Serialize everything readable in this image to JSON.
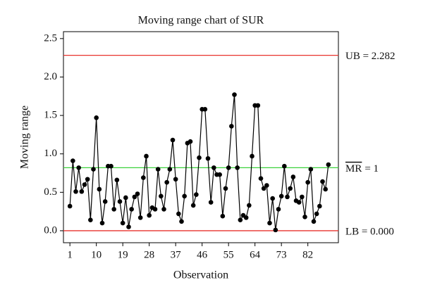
{
  "chart_data": {
    "type": "line",
    "title": "Moving range chart of SUR",
    "xlabel": "Observation",
    "ylabel": "Moving range",
    "x": [
      1,
      2,
      3,
      4,
      5,
      6,
      7,
      8,
      9,
      10,
      11,
      12,
      13,
      14,
      15,
      16,
      17,
      18,
      19,
      20,
      21,
      22,
      23,
      24,
      25,
      26,
      27,
      28,
      29,
      30,
      31,
      32,
      33,
      34,
      35,
      36,
      37,
      38,
      39,
      40,
      41,
      42,
      43,
      44,
      45,
      46,
      47,
      48,
      49,
      50,
      51,
      52,
      53,
      54,
      55,
      56,
      57,
      58,
      59,
      60,
      61,
      62,
      63,
      64,
      65,
      66,
      67,
      68,
      69,
      70,
      71,
      72,
      73,
      74,
      75,
      76,
      77,
      78,
      79,
      80,
      81,
      82,
      83,
      84,
      85,
      86,
      87,
      88,
      89
    ],
    "series": [
      {
        "color": "#000000",
        "values": [
          0.32,
          0.91,
          0.51,
          0.82,
          0.51,
          0.6,
          0.67,
          0.14,
          0.8,
          1.47,
          0.54,
          0.1,
          0.38,
          0.84,
          0.84,
          0.28,
          0.66,
          0.38,
          0.1,
          0.43,
          0.05,
          0.28,
          0.44,
          0.48,
          0.17,
          0.69,
          0.97,
          0.2,
          0.3,
          0.28,
          0.8,
          0.45,
          0.28,
          0.63,
          0.8,
          1.18,
          0.67,
          0.22,
          0.12,
          0.45,
          1.14,
          1.16,
          0.33,
          0.47,
          0.95,
          1.58,
          1.58,
          0.94,
          0.37,
          0.82,
          0.73,
          0.73,
          0.19,
          0.55,
          0.82,
          1.36,
          1.77,
          0.82,
          0.14,
          0.2,
          0.17,
          0.33,
          0.97,
          1.63,
          1.63,
          0.68,
          0.55,
          0.59,
          0.1,
          0.42,
          0.01,
          0.28,
          0.45,
          0.84,
          0.44,
          0.55,
          0.7,
          0.39,
          0.37,
          0.44,
          0.18,
          0.63,
          0.8,
          0.12,
          0.22,
          0.32,
          0.64,
          0.54,
          0.86
        ]
      }
    ],
    "xlim": [
      -1.2,
      92.4
    ],
    "ylim": [
      -0.156,
      2.59
    ],
    "xticks": [
      1,
      10,
      19,
      28,
      37,
      46,
      55,
      64,
      73,
      82
    ],
    "yticks": [
      {
        "value": 0,
        "label": "0.0"
      },
      {
        "value": 0.5,
        "label": "0.5"
      },
      {
        "value": 1,
        "label": "1.0"
      },
      {
        "value": 1.5,
        "label": "1.5"
      },
      {
        "value": 2,
        "label": "2.0"
      },
      {
        "value": 2.5,
        "label": "2.5"
      }
    ],
    "reference_lines": [
      {
        "value": 2.282,
        "label": "UB = 2.282",
        "color": "#e8332e"
      },
      {
        "value": 0.82,
        "symbol": "MR",
        "label": "= 1",
        "color": "#3cd13c"
      },
      {
        "value": 0,
        "label": "LB = 0.000",
        "color": "#e8332e"
      }
    ]
  }
}
